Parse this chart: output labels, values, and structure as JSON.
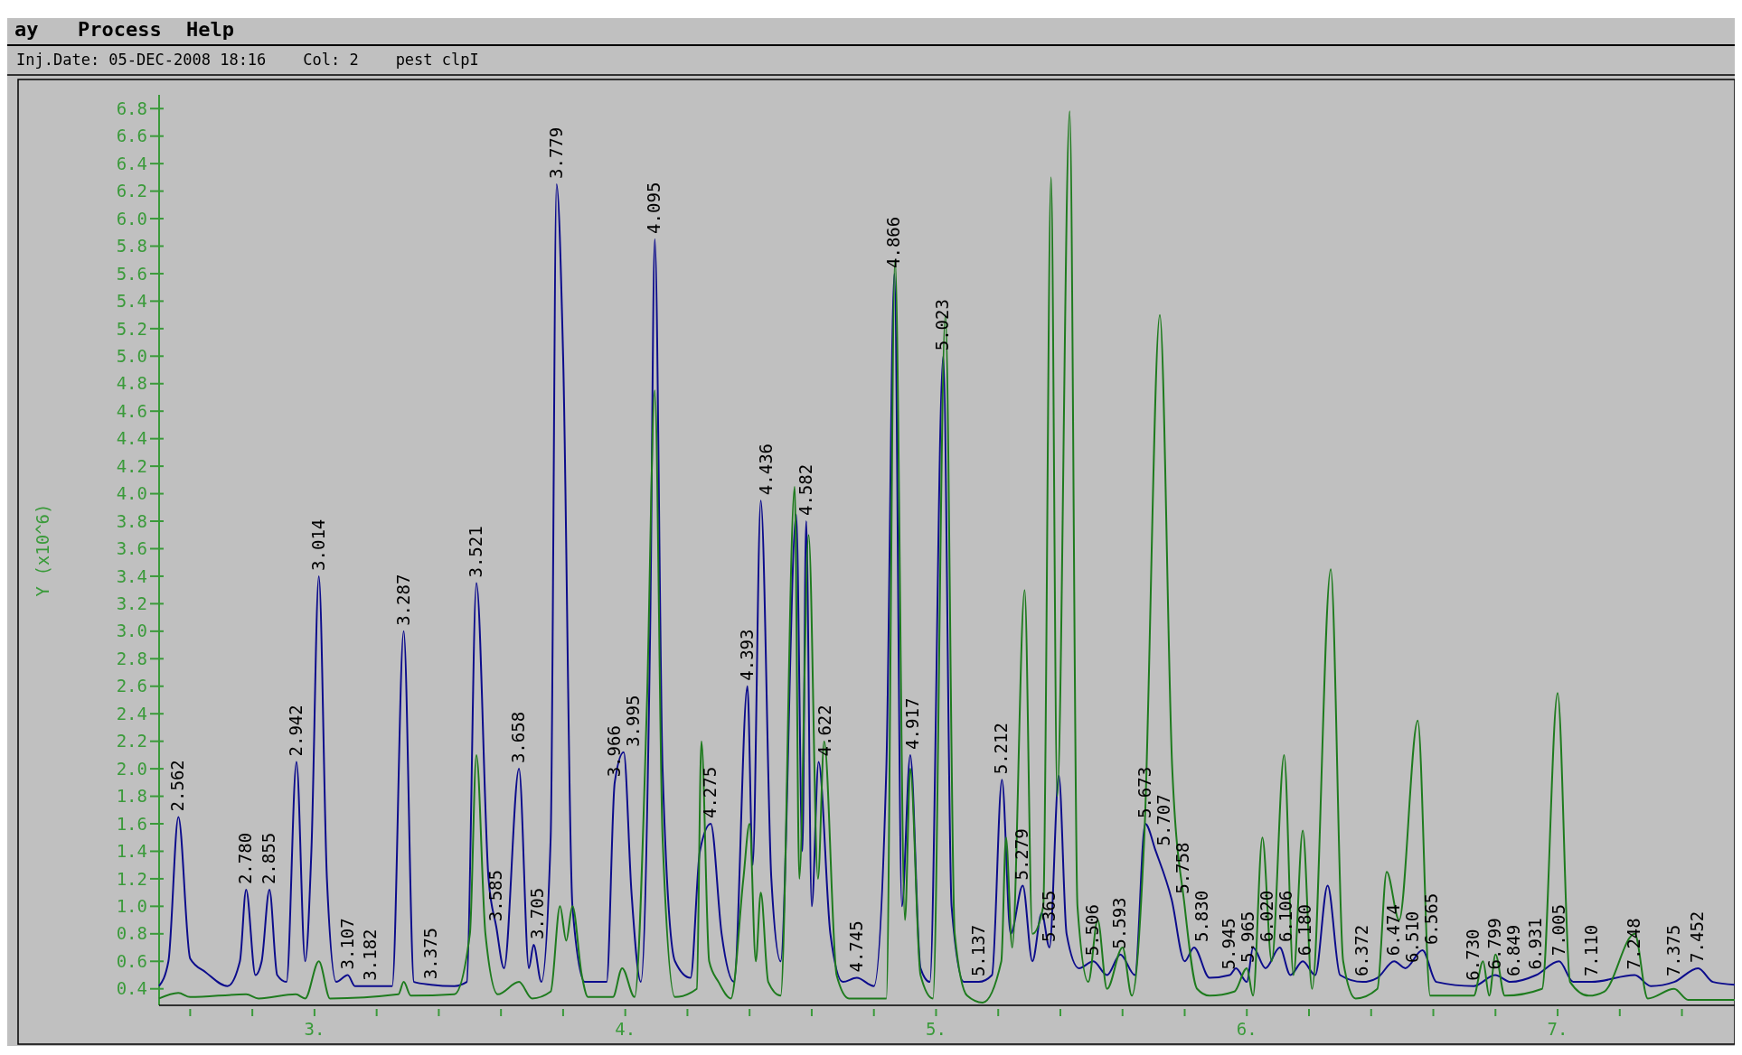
{
  "chart_data": {
    "type": "line",
    "subtitle": "Inj.Date: 05-DEC-2008 18:16    Col: 2    pest clpI",
    "ylabel": "Y (x10^6)",
    "xlim": [
      2.5,
      7.57
    ],
    "ylim": [
      0.28,
      6.9
    ],
    "xticks": [
      {
        "value": 2.6,
        "label": null
      },
      {
        "value": 2.8,
        "label": null
      },
      {
        "value": 3,
        "label": "3."
      },
      {
        "value": 3.2,
        "label": null
      },
      {
        "value": 3.4,
        "label": null
      },
      {
        "value": 3.6,
        "label": null
      },
      {
        "value": 3.8,
        "label": null
      },
      {
        "value": 4,
        "label": "4."
      },
      {
        "value": 4.2,
        "label": null
      },
      {
        "value": 4.4,
        "label": null
      },
      {
        "value": 4.6,
        "label": null
      },
      {
        "value": 4.8,
        "label": null
      },
      {
        "value": 5,
        "label": "5."
      },
      {
        "value": 5.2,
        "label": null
      },
      {
        "value": 5.4,
        "label": null
      },
      {
        "value": 5.6,
        "label": null
      },
      {
        "value": 5.8,
        "label": null
      },
      {
        "value": 6,
        "label": "6."
      },
      {
        "value": 6.2,
        "label": null
      },
      {
        "value": 6.4,
        "label": null
      },
      {
        "value": 6.6,
        "label": null
      },
      {
        "value": 6.8,
        "label": null
      },
      {
        "value": 7,
        "label": "7."
      },
      {
        "value": 7.2,
        "label": null
      },
      {
        "value": 7.4,
        "label": null
      }
    ],
    "yticks": [
      {
        "value": 0.4,
        "label": "0.4"
      },
      {
        "value": 0.6,
        "label": "0.6"
      },
      {
        "value": 0.8,
        "label": "0.8"
      },
      {
        "value": 1,
        "label": "1.0"
      },
      {
        "value": 1.2,
        "label": "1.2"
      },
      {
        "value": 1.4,
        "label": "1.4"
      },
      {
        "value": 1.6,
        "label": "1.6"
      },
      {
        "value": 1.8,
        "label": "1.8"
      },
      {
        "value": 2,
        "label": "2.0"
      },
      {
        "value": 2.2,
        "label": "2.2"
      },
      {
        "value": 2.4,
        "label": "2.4"
      },
      {
        "value": 2.6,
        "label": "2.6"
      },
      {
        "value": 2.8,
        "label": "2.8"
      },
      {
        "value": 3,
        "label": "3.0"
      },
      {
        "value": 3.2,
        "label": "3.2"
      },
      {
        "value": 3.4,
        "label": "3.4"
      },
      {
        "value": 3.6,
        "label": "3.6"
      },
      {
        "value": 3.8,
        "label": "3.8"
      },
      {
        "value": 4,
        "label": "4.0"
      },
      {
        "value": 4.2,
        "label": "4.2"
      },
      {
        "value": 4.4,
        "label": "4.4"
      },
      {
        "value": 4.6,
        "label": "4.6"
      },
      {
        "value": 4.8,
        "label": "4.8"
      },
      {
        "value": 5,
        "label": "5.0"
      },
      {
        "value": 5.2,
        "label": "5.2"
      },
      {
        "value": 5.4,
        "label": "5.4"
      },
      {
        "value": 5.6,
        "label": "5.6"
      },
      {
        "value": 5.8,
        "label": "5.8"
      },
      {
        "value": 6,
        "label": "6.0"
      },
      {
        "value": 6.2,
        "label": "6.2"
      },
      {
        "value": 6.4,
        "label": "6.4"
      },
      {
        "value": 6.6,
        "label": "6.6"
      },
      {
        "value": 6.8,
        "label": "6.8"
      }
    ],
    "grid": false,
    "legend": false,
    "marker": "none",
    "line_style": "solid",
    "series": [
      {
        "color": "#0c0c8c",
        "x": [
          2.5,
          2.53,
          2.562,
          2.6,
          2.65,
          2.72,
          2.76,
          2.78,
          2.81,
          2.83,
          2.855,
          2.88,
          2.91,
          2.942,
          2.97,
          2.99,
          3.014,
          3.04,
          3.07,
          3.107,
          3.13,
          3.182,
          3.25,
          3.287,
          3.32,
          3.375,
          3.45,
          3.49,
          3.521,
          3.56,
          3.585,
          3.61,
          3.658,
          3.69,
          3.705,
          3.73,
          3.76,
          3.779,
          3.8,
          3.83,
          3.87,
          3.94,
          3.966,
          3.995,
          4.02,
          4.05,
          4.08,
          4.095,
          4.12,
          4.16,
          4.21,
          4.24,
          4.275,
          4.31,
          4.35,
          4.393,
          4.41,
          4.436,
          4.47,
          4.5,
          4.55,
          4.57,
          4.582,
          4.6,
          4.622,
          4.66,
          4.7,
          4.745,
          4.8,
          4.84,
          4.866,
          4.89,
          4.917,
          4.95,
          4.98,
          5.023,
          5.05,
          5.09,
          5.137,
          5.18,
          5.212,
          5.24,
          5.279,
          5.31,
          5.34,
          5.365,
          5.395,
          5.42,
          5.46,
          5.506,
          5.55,
          5.593,
          5.64,
          5.673,
          5.707,
          5.758,
          5.8,
          5.83,
          5.88,
          5.945,
          5.965,
          6,
          6.02,
          6.06,
          6.106,
          6.14,
          6.18,
          6.22,
          6.26,
          6.3,
          6.372,
          6.42,
          6.474,
          6.51,
          6.565,
          6.61,
          6.73,
          6.799,
          6.849,
          6.931,
          7.005,
          7.05,
          7.11,
          7.248,
          7.3,
          7.375,
          7.452,
          7.5,
          7.57
        ],
        "values": [
          0.42,
          0.6,
          1.65,
          0.62,
          0.52,
          0.42,
          0.6,
          1.12,
          0.5,
          0.6,
          1.12,
          0.5,
          0.45,
          2.05,
          0.6,
          1.4,
          3.4,
          1.2,
          0.45,
          0.5,
          0.42,
          0.42,
          0.42,
          3.0,
          0.45,
          0.43,
          0.42,
          0.45,
          3.35,
          1.2,
          0.85,
          0.55,
          2.0,
          0.55,
          0.72,
          0.45,
          1.5,
          6.25,
          5.0,
          1.0,
          0.45,
          0.45,
          1.9,
          2.12,
          1.1,
          0.45,
          3.0,
          5.85,
          2.0,
          0.6,
          0.48,
          1.4,
          1.6,
          0.8,
          0.45,
          2.6,
          1.3,
          3.95,
          1.2,
          0.6,
          3.85,
          1.4,
          3.8,
          1.0,
          2.05,
          0.8,
          0.45,
          0.48,
          0.42,
          2.0,
          5.6,
          1.0,
          2.1,
          0.55,
          0.45,
          5.0,
          1.0,
          0.45,
          0.45,
          0.5,
          1.92,
          0.8,
          1.15,
          0.6,
          0.95,
          0.7,
          1.95,
          0.8,
          0.55,
          0.6,
          0.5,
          0.65,
          0.5,
          1.6,
          1.4,
          1.05,
          0.6,
          0.7,
          0.48,
          0.5,
          0.55,
          0.45,
          0.7,
          0.55,
          0.7,
          0.5,
          0.6,
          0.5,
          1.15,
          0.5,
          0.45,
          0.48,
          0.6,
          0.55,
          0.68,
          0.45,
          0.42,
          0.5,
          0.45,
          0.5,
          0.6,
          0.45,
          0.45,
          0.5,
          0.42,
          0.45,
          0.55,
          0.45,
          0.43
        ]
      },
      {
        "color": "#1e7b1e",
        "x": [
          2.5,
          2.562,
          2.6,
          2.78,
          2.82,
          2.94,
          2.97,
          3.014,
          3.05,
          3.27,
          3.287,
          3.31,
          3.45,
          3.5,
          3.521,
          3.55,
          3.59,
          3.658,
          3.7,
          3.76,
          3.79,
          3.81,
          3.83,
          3.86,
          3.88,
          3.96,
          3.99,
          4.03,
          4.07,
          4.095,
          4.12,
          4.16,
          4.23,
          4.245,
          4.27,
          4.3,
          4.34,
          4.38,
          4.4,
          4.42,
          4.436,
          4.46,
          4.5,
          4.545,
          4.56,
          4.59,
          4.62,
          4.64,
          4.68,
          4.72,
          4.84,
          4.868,
          4.9,
          4.917,
          4.95,
          4.99,
          5.03,
          5.06,
          5.1,
          5.15,
          5.21,
          5.225,
          5.245,
          5.285,
          5.31,
          5.345,
          5.37,
          5.39,
          5.43,
          5.455,
          5.49,
          5.52,
          5.55,
          5.6,
          5.63,
          5.67,
          5.72,
          5.76,
          5.8,
          5.84,
          5.88,
          5.96,
          6,
          6.02,
          6.05,
          6.08,
          6.12,
          6.15,
          6.18,
          6.21,
          6.27,
          6.31,
          6.35,
          6.42,
          6.45,
          6.49,
          6.55,
          6.59,
          6.73,
          6.76,
          6.78,
          6.8,
          6.83,
          6.95,
          7,
          7.04,
          7.1,
          7.15,
          7.248,
          7.29,
          7.375,
          7.42,
          7.57
        ],
        "values": [
          0.33,
          0.37,
          0.34,
          0.36,
          0.33,
          0.36,
          0.33,
          0.6,
          0.33,
          0.36,
          0.45,
          0.35,
          0.36,
          0.8,
          2.1,
          0.8,
          0.36,
          0.45,
          0.33,
          0.38,
          1.0,
          0.75,
          1.0,
          0.5,
          0.34,
          0.34,
          0.55,
          0.34,
          2.5,
          4.75,
          1.5,
          0.34,
          0.4,
          2.2,
          0.6,
          0.45,
          0.33,
          1.2,
          1.6,
          0.6,
          1.1,
          0.45,
          0.35,
          4.05,
          1.2,
          3.7,
          1.2,
          2.2,
          0.5,
          0.33,
          0.33,
          5.7,
          0.9,
          2.0,
          0.5,
          0.33,
          5.3,
          0.8,
          0.35,
          0.3,
          0.6,
          1.5,
          0.7,
          3.3,
          0.8,
          1.0,
          6.3,
          1.8,
          6.78,
          1.0,
          0.45,
          0.9,
          0.4,
          0.7,
          0.35,
          1.5,
          5.3,
          2.0,
          1.0,
          0.4,
          0.35,
          0.38,
          0.55,
          0.35,
          1.5,
          0.6,
          2.1,
          0.5,
          1.55,
          0.4,
          3.45,
          0.6,
          0.33,
          0.4,
          1.25,
          0.9,
          2.35,
          0.35,
          0.35,
          0.6,
          0.35,
          0.65,
          0.35,
          0.4,
          2.55,
          0.45,
          0.35,
          0.38,
          0.8,
          0.33,
          0.4,
          0.32,
          0.32
        ]
      }
    ],
    "annotations": [
      "ay",
      "Process",
      "Help",
      {
        "text": "2.562",
        "x": 2.562,
        "y": 1.65
      },
      {
        "text": "2.780",
        "x": 2.78,
        "y": 1.12
      },
      {
        "text": "2.855",
        "x": 2.855,
        "y": 1.12
      },
      {
        "text": "2.942",
        "x": 2.942,
        "y": 2.05
      },
      {
        "text": "3.014",
        "x": 3.014,
        "y": 3.4
      },
      {
        "text": "3.107",
        "x": 3.107,
        "y": 0.5
      },
      {
        "text": "3.182",
        "x": 3.182,
        "y": 0.42
      },
      {
        "text": "3.287",
        "x": 3.287,
        "y": 3.0
      },
      {
        "text": "3.375",
        "x": 3.375,
        "y": 0.43
      },
      {
        "text": "3.521",
        "x": 3.521,
        "y": 3.35
      },
      {
        "text": "3.585",
        "x": 3.585,
        "y": 0.85
      },
      {
        "text": "3.658",
        "x": 3.658,
        "y": 2.0
      },
      {
        "text": "3.705",
        "x": 3.705,
        "y": 0.72
      },
      {
        "text": "3.779",
        "x": 3.779,
        "y": 6.25
      },
      {
        "text": "3.966",
        "x": 3.966,
        "y": 1.9
      },
      {
        "text": "3.995",
        "x": 3.995,
        "y": 2.12
      },
      {
        "text": "4.095",
        "x": 4.095,
        "y": 5.85
      },
      {
        "text": "4.275",
        "x": 4.275,
        "y": 1.6
      },
      {
        "text": "4.393",
        "x": 4.393,
        "y": 2.6
      },
      {
        "text": "4.436",
        "x": 4.436,
        "y": 3.95
      },
      {
        "text": "4.582",
        "x": 4.582,
        "y": 3.8
      },
      {
        "text": "4.622",
        "x": 4.622,
        "y": 2.05
      },
      {
        "text": "4.745",
        "x": 4.745,
        "y": 0.48
      },
      {
        "text": "4.866",
        "x": 4.866,
        "y": 5.6
      },
      {
        "text": "4.917",
        "x": 4.917,
        "y": 2.1
      },
      {
        "text": "5.023",
        "x": 5.023,
        "y": 5.0
      },
      {
        "text": "5.137",
        "x": 5.137,
        "y": 0.45
      },
      {
        "text": "5.212",
        "x": 5.212,
        "y": 1.92
      },
      {
        "text": "5.279",
        "x": 5.279,
        "y": 1.15
      },
      {
        "text": "5.365",
        "x": 5.365,
        "y": 0.7
      },
      {
        "text": "5.506",
        "x": 5.506,
        "y": 0.6
      },
      {
        "text": "5.593",
        "x": 5.593,
        "y": 0.65
      },
      {
        "text": "5.673",
        "x": 5.673,
        "y": 1.6
      },
      {
        "text": "5.707",
        "x": 5.707,
        "y": 1.4
      },
      {
        "text": "5.758",
        "x": 5.758,
        "y": 1.05
      },
      {
        "text": "5.830",
        "x": 5.83,
        "y": 0.7
      },
      {
        "text": "5.945",
        "x": 5.945,
        "y": 0.5
      },
      {
        "text": "5.965",
        "x": 5.965,
        "y": 0.55
      },
      {
        "text": "6.020",
        "x": 6.02,
        "y": 0.7
      },
      {
        "text": "6.106",
        "x": 6.106,
        "y": 0.7
      },
      {
        "text": "6.180",
        "x": 6.18,
        "y": 0.6
      },
      {
        "text": "6.372",
        "x": 6.372,
        "y": 0.45
      },
      {
        "text": "6.474",
        "x": 6.474,
        "y": 0.6
      },
      {
        "text": "6.510",
        "x": 6.51,
        "y": 0.55
      },
      {
        "text": "6.565",
        "x": 6.565,
        "y": 0.68
      },
      {
        "text": "6.730",
        "x": 6.73,
        "y": 0.42
      },
      {
        "text": "6.799",
        "x": 6.799,
        "y": 0.5
      },
      {
        "text": "6.849",
        "x": 6.849,
        "y": 0.45
      },
      {
        "text": "6.931",
        "x": 6.931,
        "y": 0.5
      },
      {
        "text": "7.005",
        "x": 7.005,
        "y": 0.6
      },
      {
        "text": "7.110",
        "x": 7.11,
        "y": 0.45
      },
      {
        "text": "7.248",
        "x": 7.248,
        "y": 0.5
      },
      {
        "text": "7.375",
        "x": 7.375,
        "y": 0.45
      },
      {
        "text": "7.452",
        "x": 7.452,
        "y": 0.55
      }
    ]
  }
}
